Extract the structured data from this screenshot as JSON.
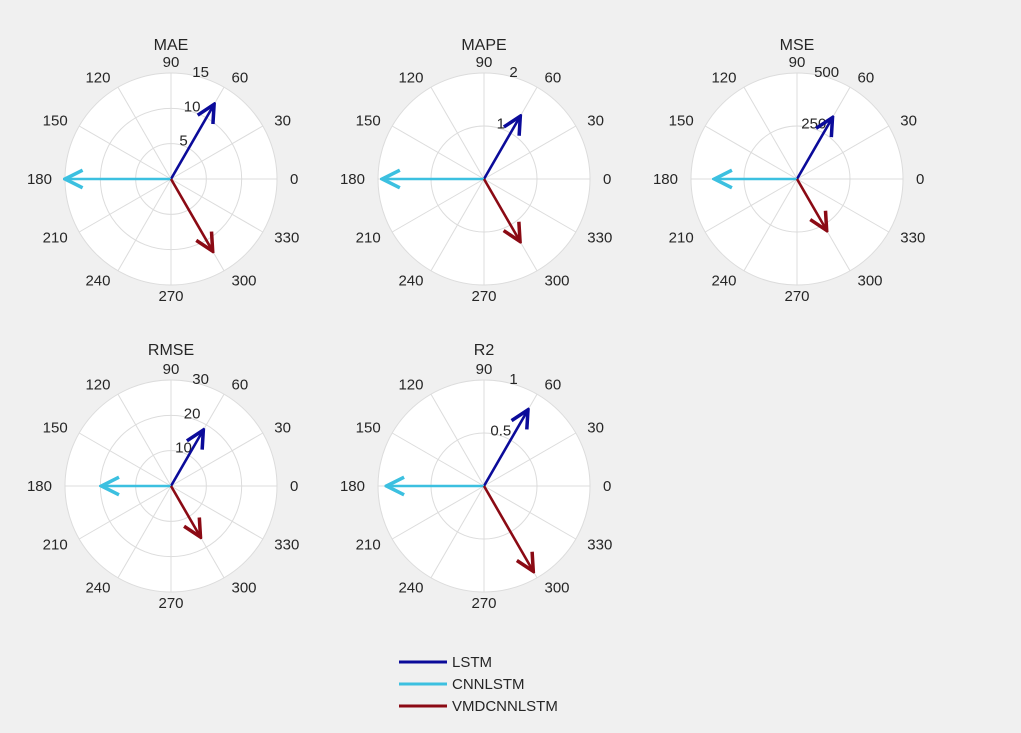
{
  "figure": {
    "background": "#f0f0f0",
    "polar_face": "#ffffff",
    "grid_color": "#dcdcdc"
  },
  "legend": {
    "placement": "bottom-center",
    "entries": [
      {
        "name": "LSTM",
        "color": "#0b0b9a"
      },
      {
        "name": "CNNLSTM",
        "color": "#3cc0e0"
      },
      {
        "name": "VMDCNNLSTM",
        "color": "#8b0a14"
      }
    ]
  },
  "chart_data": [
    {
      "type": "compass",
      "title": "MAE",
      "angle_ticks": [
        "0",
        "30",
        "60",
        "90",
        "120",
        "150",
        "180",
        "210",
        "240",
        "270",
        "300",
        "330"
      ],
      "rmax": 15,
      "r_ticks": [
        5,
        10,
        15
      ],
      "r_tick_labels": [
        "5",
        "10",
        "15"
      ],
      "series": [
        {
          "name": "LSTM",
          "angle": 60,
          "magnitude": 12.2
        },
        {
          "name": "CNNLSTM",
          "angle": 180,
          "magnitude": 15.0
        },
        {
          "name": "VMDCNNLSTM",
          "angle": 300,
          "magnitude": 11.8
        }
      ]
    },
    {
      "type": "compass",
      "title": "MAPE",
      "angle_ticks": [
        "0",
        "30",
        "60",
        "90",
        "120",
        "150",
        "180",
        "210",
        "240",
        "270",
        "300",
        "330"
      ],
      "rmax": 2,
      "r_ticks": [
        1,
        2
      ],
      "r_tick_labels": [
        "1",
        "2"
      ],
      "series": [
        {
          "name": "LSTM",
          "angle": 60,
          "magnitude": 1.37
        },
        {
          "name": "CNNLSTM",
          "angle": 180,
          "magnitude": 1.92
        },
        {
          "name": "VMDCNNLSTM",
          "angle": 300,
          "magnitude": 1.36
        }
      ]
    },
    {
      "type": "compass",
      "title": "MSE",
      "angle_ticks": [
        "0",
        "30",
        "60",
        "90",
        "120",
        "150",
        "180",
        "210",
        "240",
        "270",
        "300",
        "330"
      ],
      "rmax": 500,
      "r_ticks": [
        250,
        500
      ],
      "r_tick_labels": [
        "250",
        "500"
      ],
      "series": [
        {
          "name": "LSTM",
          "angle": 60,
          "magnitude": 335
        },
        {
          "name": "CNNLSTM",
          "angle": 180,
          "magnitude": 390
        },
        {
          "name": "VMDCNNLSTM",
          "angle": 300,
          "magnitude": 280
        }
      ]
    },
    {
      "type": "compass",
      "title": "RMSE",
      "angle_ticks": [
        "0",
        "30",
        "60",
        "90",
        "120",
        "150",
        "180",
        "210",
        "240",
        "270",
        "300",
        "330"
      ],
      "rmax": 30,
      "r_ticks": [
        10,
        20,
        30
      ],
      "r_tick_labels": [
        "10",
        "20",
        "30"
      ],
      "series": [
        {
          "name": "LSTM",
          "angle": 60,
          "magnitude": 18.3
        },
        {
          "name": "CNNLSTM",
          "angle": 180,
          "magnitude": 19.7
        },
        {
          "name": "VMDCNNLSTM",
          "angle": 300,
          "magnitude": 16.7
        }
      ]
    },
    {
      "type": "compass",
      "title": "R2",
      "angle_ticks": [
        "0",
        "30",
        "60",
        "90",
        "120",
        "150",
        "180",
        "210",
        "240",
        "270",
        "300",
        "330"
      ],
      "rmax": 1,
      "r_ticks": [
        0.5,
        1
      ],
      "r_tick_labels": [
        "0.5",
        "1"
      ],
      "series": [
        {
          "name": "LSTM",
          "angle": 60,
          "magnitude": 0.83
        },
        {
          "name": "CNNLSTM",
          "angle": 180,
          "magnitude": 0.92
        },
        {
          "name": "VMDCNNLSTM",
          "angle": 300,
          "magnitude": 0.93
        }
      ]
    }
  ]
}
